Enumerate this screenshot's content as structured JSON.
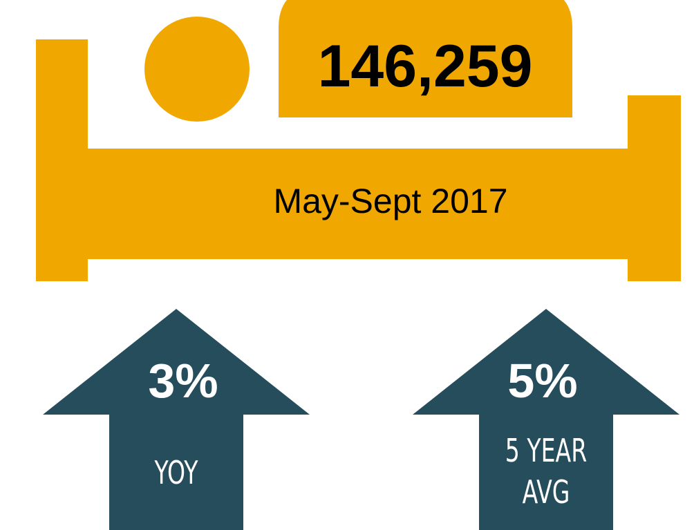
{
  "headline": {
    "value": "146,259",
    "period": "May-Sept 2017"
  },
  "stats": [
    {
      "value": "3%",
      "label": [
        "YOY"
      ]
    },
    {
      "value": "5%",
      "label": [
        "5 YEAR",
        "AVG"
      ]
    }
  ]
}
